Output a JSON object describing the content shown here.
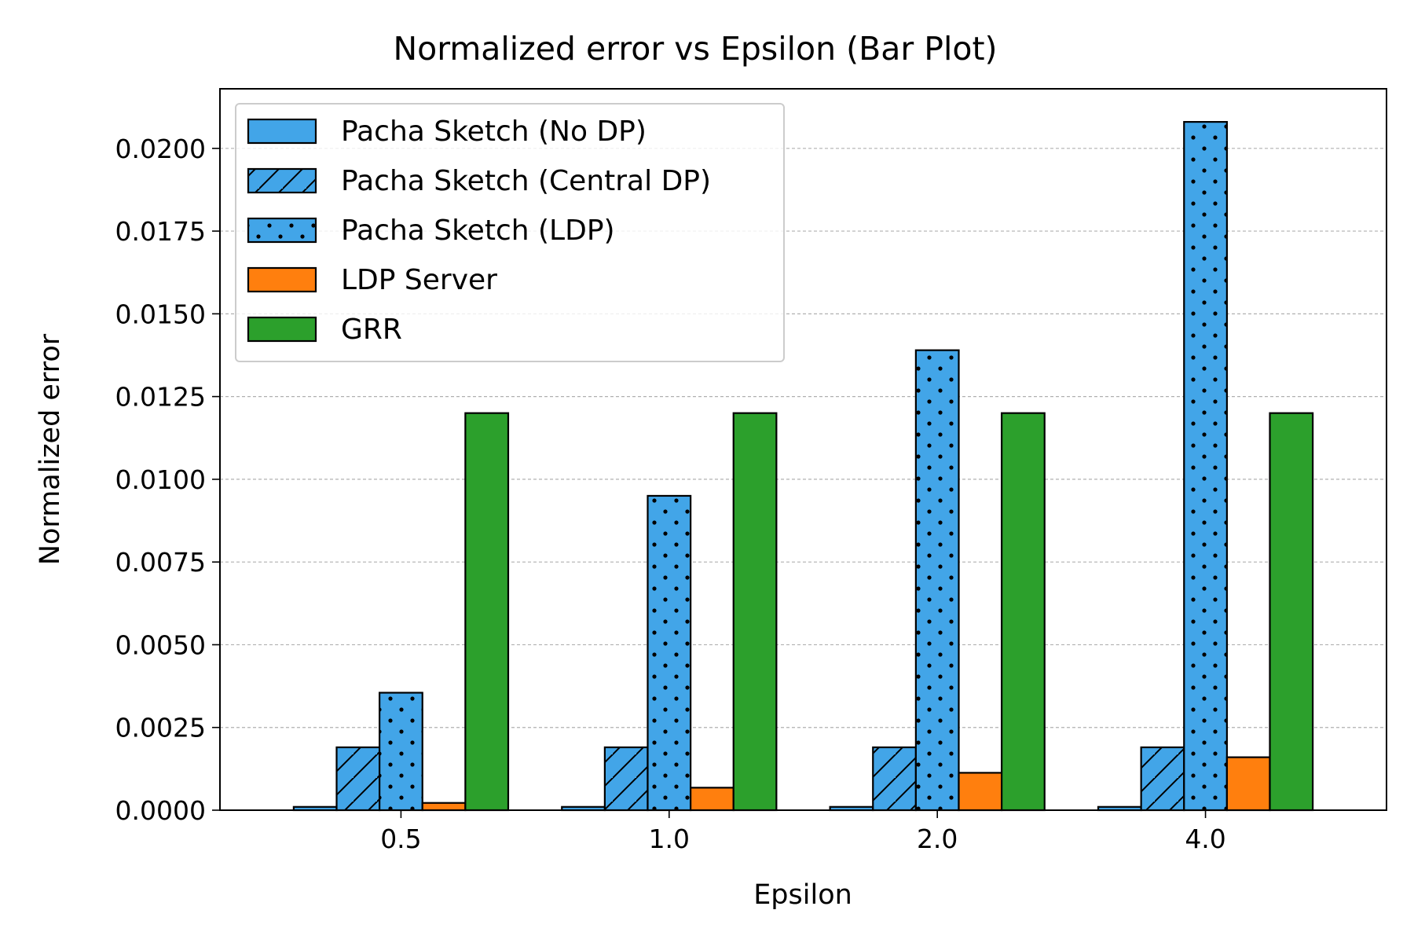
{
  "chart_data": {
    "type": "bar",
    "title": "Normalized error vs Epsilon (Bar Plot)",
    "xlabel": "Epsilon",
    "ylabel": "Normalized error",
    "categories": [
      "0.5",
      "1.0",
      "2.0",
      "4.0"
    ],
    "ylim": [
      0,
      0.0218
    ],
    "yticks": [
      "0.0000",
      "0.0025",
      "0.0050",
      "0.0075",
      "0.0100",
      "0.0125",
      "0.0150",
      "0.0175",
      "0.0200"
    ],
    "grid": "y-dashed",
    "legend_position": "upper-left",
    "series": [
      {
        "name": "Pacha Sketch (No DP)",
        "color": "#42a5e8",
        "hatch": "none",
        "values": [
          0.0001,
          0.0001,
          0.0001,
          0.0001
        ]
      },
      {
        "name": "Pacha Sketch (Central DP)",
        "color": "#42a5e8",
        "hatch": "diagonal",
        "values": [
          0.0019,
          0.0019,
          0.0019,
          0.0019
        ]
      },
      {
        "name": "Pacha Sketch (LDP)",
        "color": "#42a5e8",
        "hatch": "dots",
        "values": [
          0.00355,
          0.0095,
          0.0139,
          0.0208
        ]
      },
      {
        "name": "LDP Server",
        "color": "#ff7f0e",
        "hatch": "none",
        "values": [
          0.00022,
          0.00068,
          0.00113,
          0.0016
        ]
      },
      {
        "name": "GRR",
        "color": "#2ca02c",
        "hatch": "none",
        "values": [
          0.012,
          0.012,
          0.012,
          0.012
        ]
      }
    ]
  }
}
